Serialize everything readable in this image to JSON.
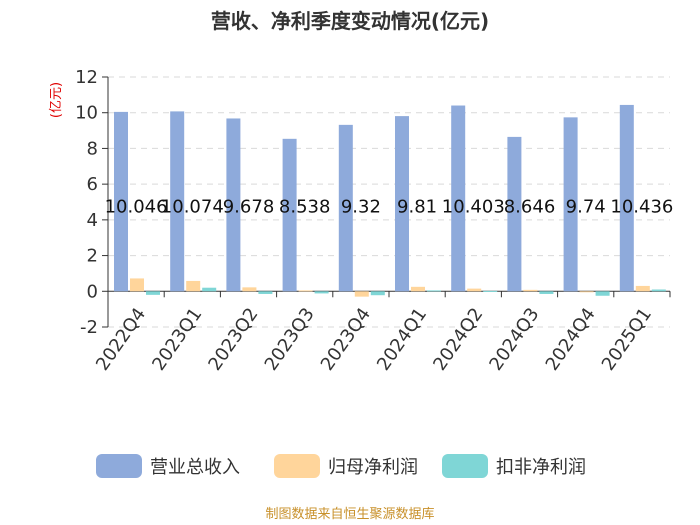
{
  "chart_data": {
    "type": "bar",
    "title": "营收、净利季度变动情况(亿元)",
    "unit_label": "(亿元)",
    "categories": [
      "2022Q4",
      "2023Q1",
      "2023Q2",
      "2023Q3",
      "2023Q4",
      "2024Q1",
      "2024Q2",
      "2024Q3",
      "2024Q4",
      "2025Q1"
    ],
    "series": [
      {
        "name": "营业总收入",
        "color": "#8eaadb",
        "values": [
          10.046,
          10.074,
          9.678,
          8.538,
          9.32,
          9.81,
          10.403,
          8.646,
          9.74,
          10.436
        ],
        "labels": [
          "10.046",
          "10.074",
          "9.678",
          "8.538",
          "9.32",
          "9.81",
          "10.403",
          "8.646",
          "9.74",
          "10.436"
        ]
      },
      {
        "name": "归母净利润",
        "color": "#ffd59b",
        "values": [
          0.72,
          0.58,
          0.22,
          0.05,
          -0.3,
          0.25,
          0.15,
          0.08,
          -0.05,
          0.3
        ]
      },
      {
        "name": "扣非净利润",
        "color": "#7fd6d6",
        "values": [
          -0.2,
          0.2,
          -0.15,
          -0.12,
          -0.22,
          0.05,
          0.02,
          -0.15,
          -0.25,
          0.1
        ]
      }
    ],
    "yticks": [
      -2,
      0,
      2,
      4,
      6,
      8,
      10,
      12
    ],
    "ylim": [
      -2,
      12
    ],
    "grid": true,
    "legend_position": "bottom"
  },
  "source": "制图数据来自恒生聚源数据库"
}
